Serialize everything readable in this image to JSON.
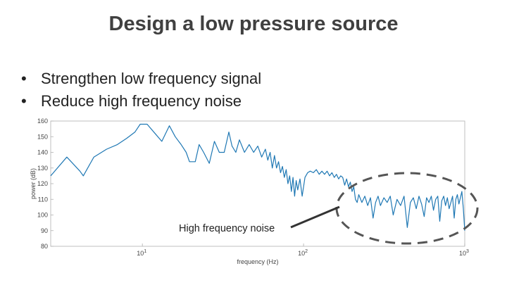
{
  "slide": {
    "title": "Design a low pressure source",
    "bullets": [
      "Strengthen low frequency signal",
      "Reduce high frequency noise"
    ]
  },
  "annotation": {
    "text": "High frequency noise"
  },
  "chart_data": {
    "type": "line",
    "title": "",
    "xlabel": "frequency (Hz)",
    "ylabel": "power (dB)",
    "xscale": "log",
    "xlim": [
      2.7,
      1000
    ],
    "ylim": [
      80,
      160
    ],
    "yticks": [
      80,
      90,
      100,
      110,
      120,
      130,
      140,
      150,
      160
    ],
    "xticks": [
      {
        "value": 10,
        "base": "10",
        "exp": "1"
      },
      {
        "value": 100,
        "base": "10",
        "exp": "2"
      },
      {
        "value": 1000,
        "base": "10",
        "exp": "3"
      }
    ],
    "grid": false,
    "series_color": "#1f78b4",
    "series": [
      {
        "points": [
          [
            2.7,
            125
          ],
          [
            3.4,
            137
          ],
          [
            4.1,
            128
          ],
          [
            4.3,
            125
          ],
          [
            5.0,
            137
          ],
          [
            6.0,
            142
          ],
          [
            7.0,
            145
          ],
          [
            8.0,
            149
          ],
          [
            9.0,
            153
          ],
          [
            9.7,
            158
          ],
          [
            10.7,
            158
          ],
          [
            12.0,
            152
          ],
          [
            13.2,
            147
          ],
          [
            14.7,
            157
          ],
          [
            16.0,
            150
          ],
          [
            17.4,
            145
          ],
          [
            18.7,
            140
          ],
          [
            19.6,
            134
          ],
          [
            21.3,
            134
          ],
          [
            22.5,
            145
          ],
          [
            24.0,
            140
          ],
          [
            26.0,
            133
          ],
          [
            28.0,
            147
          ],
          [
            30.0,
            140
          ],
          [
            32.2,
            140
          ],
          [
            34.4,
            153
          ],
          [
            36.0,
            144
          ],
          [
            38.0,
            140
          ],
          [
            40.0,
            148
          ],
          [
            43.0,
            140
          ],
          [
            46.0,
            145
          ],
          [
            49.0,
            140
          ],
          [
            52.0,
            144
          ],
          [
            55.0,
            137
          ],
          [
            58.0,
            142
          ],
          [
            60.0,
            135
          ],
          [
            62.0,
            140
          ],
          [
            64.0,
            130
          ],
          [
            66.0,
            138
          ],
          [
            68.0,
            130
          ],
          [
            70.0,
            134
          ],
          [
            72.0,
            127
          ],
          [
            74.0,
            131
          ],
          [
            76.0,
            124
          ],
          [
            78.0,
            129
          ],
          [
            80.0,
            120
          ],
          [
            82.0,
            125
          ],
          [
            84.0,
            115
          ],
          [
            86.0,
            124
          ],
          [
            88.0,
            112
          ],
          [
            90.0,
            122
          ],
          [
            92.0,
            116
          ],
          [
            95.0,
            123
          ],
          [
            98.0,
            112
          ],
          [
            102,
            124
          ],
          [
            106,
            127
          ],
          [
            110,
            128
          ],
          [
            115,
            127
          ],
          [
            120,
            129
          ],
          [
            125,
            126
          ],
          [
            130,
            128
          ],
          [
            135,
            126
          ],
          [
            140,
            128
          ],
          [
            145,
            125
          ],
          [
            150,
            127
          ],
          [
            155,
            124
          ],
          [
            160,
            126
          ],
          [
            165,
            123
          ],
          [
            170,
            125
          ],
          [
            175,
            124
          ],
          [
            180,
            119
          ],
          [
            185,
            123
          ],
          [
            190,
            118
          ],
          [
            195,
            121
          ],
          [
            200,
            115
          ],
          [
            205,
            118
          ],
          [
            210,
            110
          ],
          [
            215,
            108
          ],
          [
            220,
            113
          ],
          [
            230,
            108
          ],
          [
            240,
            112
          ],
          [
            250,
            106
          ],
          [
            260,
            111
          ],
          [
            270,
            98
          ],
          [
            280,
            108
          ],
          [
            290,
            112
          ],
          [
            300,
            106
          ],
          [
            315,
            111
          ],
          [
            330,
            108
          ],
          [
            345,
            112
          ],
          [
            360,
            100
          ],
          [
            380,
            110
          ],
          [
            400,
            106
          ],
          [
            420,
            112
          ],
          [
            440,
            92
          ],
          [
            460,
            108
          ],
          [
            480,
            111
          ],
          [
            500,
            104
          ],
          [
            520,
            112
          ],
          [
            540,
            107
          ],
          [
            560,
            99
          ],
          [
            580,
            111
          ],
          [
            600,
            108
          ],
          [
            620,
            112
          ],
          [
            640,
            103
          ],
          [
            660,
            110
          ],
          [
            680,
            112
          ],
          [
            700,
            96
          ],
          [
            720,
            109
          ],
          [
            740,
            112
          ],
          [
            760,
            106
          ],
          [
            780,
            111
          ],
          [
            800,
            104
          ],
          [
            820,
            108
          ],
          [
            840,
            112
          ],
          [
            860,
            98
          ],
          [
            880,
            110
          ],
          [
            900,
            113
          ],
          [
            920,
            107
          ],
          [
            940,
            111
          ],
          [
            960,
            115
          ],
          [
            980,
            104
          ],
          [
            1000,
            90
          ]
        ]
      }
    ]
  }
}
